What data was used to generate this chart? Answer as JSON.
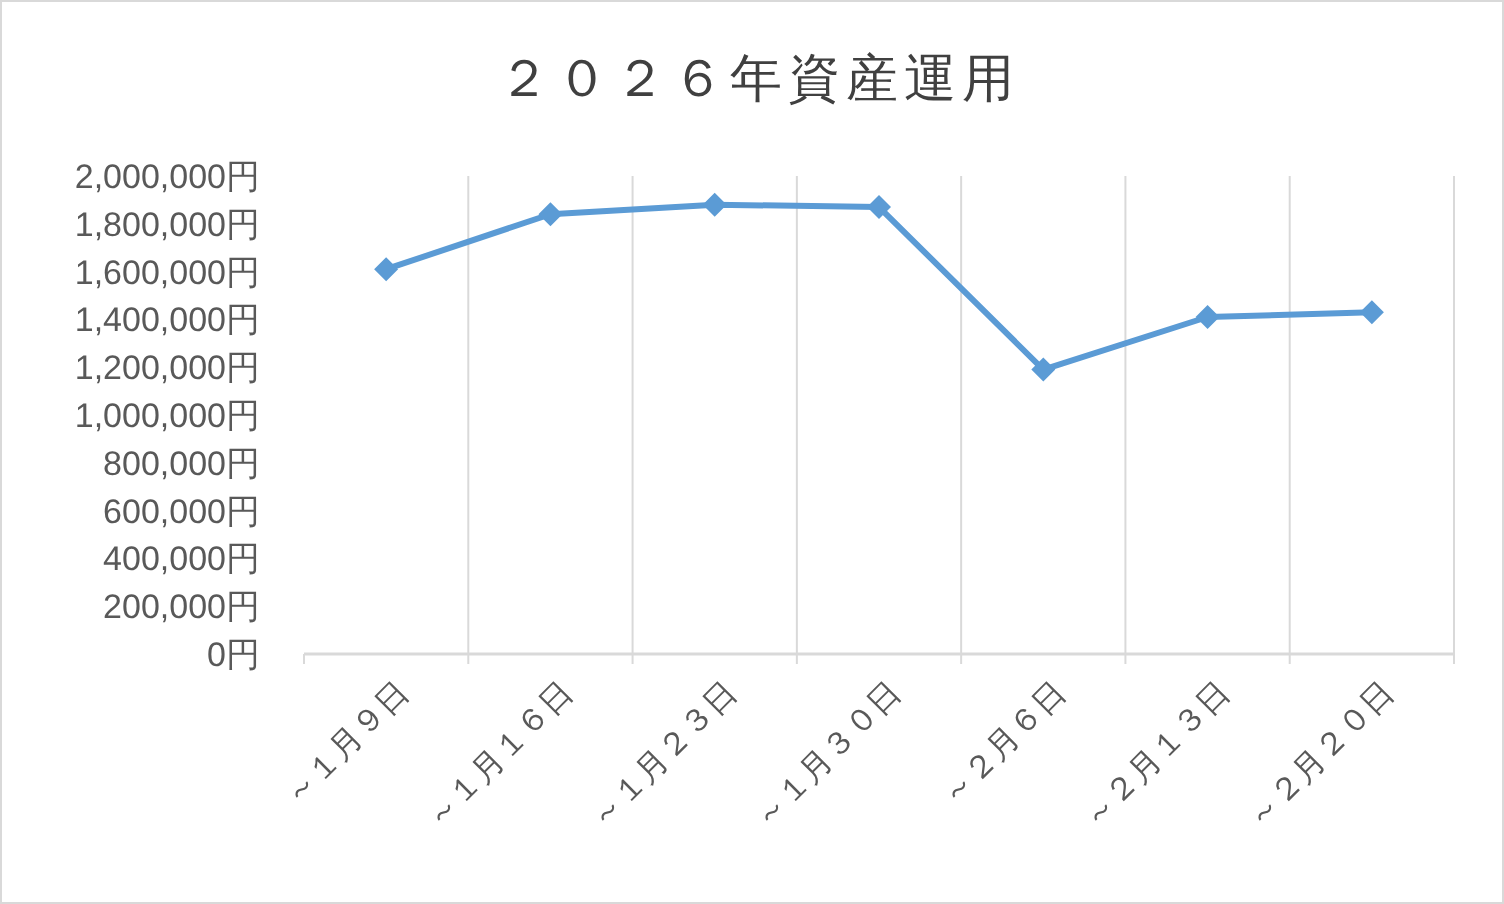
{
  "chart_data": {
    "type": "line",
    "title": "２０２６年資産運用",
    "categories": [
      "～１月９日",
      "～１月１６日",
      "～１月２３日",
      "～１月３０日",
      "～２月６日",
      "～２月１３日",
      "～２月２０日"
    ],
    "series": [
      {
        "color": "#5b9bd5",
        "values": [
          1610000,
          1840000,
          1880000,
          1870000,
          1190000,
          1410000,
          1430000
        ]
      }
    ],
    "ylim": [
      0,
      2000000
    ],
    "yticks": [
      {
        "value": 0,
        "label": "0円"
      },
      {
        "value": 200000,
        "label": "200,000円"
      },
      {
        "value": 400000,
        "label": "400,000円"
      },
      {
        "value": 600000,
        "label": "600,000円"
      },
      {
        "value": 800000,
        "label": "800,000円"
      },
      {
        "value": 1000000,
        "label": "1,000,000円"
      },
      {
        "value": 1200000,
        "label": "1,200,000円"
      },
      {
        "value": 1400000,
        "label": "1,400,000円"
      },
      {
        "value": 1600000,
        "label": "1,600,000円"
      },
      {
        "value": 1800000,
        "label": "1,800,000円"
      },
      {
        "value": 2000000,
        "label": "2,000,000円"
      }
    ],
    "grid": "x",
    "marker": "diamond",
    "line_style": "solid"
  }
}
